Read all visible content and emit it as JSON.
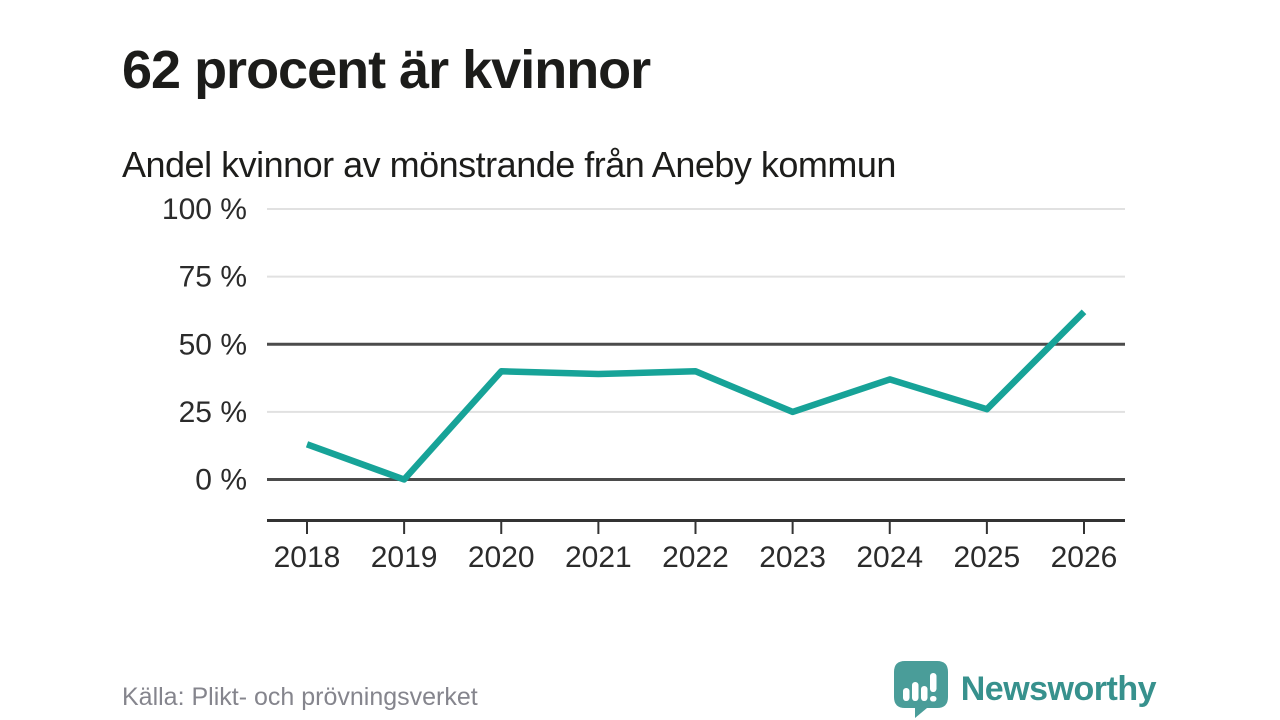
{
  "header": {
    "title": "62 procent är kvinnor",
    "subtitle": "Andel kvinnor av mönstrande från Aneby kommun"
  },
  "chart_data": {
    "type": "line",
    "title": "62 procent är kvinnor",
    "subtitle": "Andel kvinnor av mönstrande från Aneby kommun",
    "x": [
      "2018",
      "2019",
      "2020",
      "2021",
      "2022",
      "2023",
      "2024",
      "2025",
      "2026"
    ],
    "series": [
      {
        "name": "Andel kvinnor av mönstrande",
        "values": [
          13,
          0,
          40,
          39,
          40,
          25,
          37,
          26,
          62
        ]
      }
    ],
    "unit": "%",
    "ylim": [
      0,
      100
    ],
    "yticks": [
      {
        "value": 0,
        "label": "0 %",
        "emphasized": true
      },
      {
        "value": 25,
        "label": "25 %",
        "emphasized": false
      },
      {
        "value": 50,
        "label": "50 %",
        "emphasized": true
      },
      {
        "value": 75,
        "label": "75 %",
        "emphasized": false
      },
      {
        "value": 100,
        "label": "100 %",
        "emphasized": false
      }
    ],
    "grid": "horizontal",
    "legend": "none"
  },
  "footer": {
    "source": "Källa: Plikt- och prövningsverket",
    "brand": "Newsworthy"
  },
  "colors": {
    "accent_line": "#17a398",
    "grid_light": "#e1e1e1",
    "grid_dark": "#4b4b4b",
    "axis": "#333333",
    "tick_text": "#2b2b2b",
    "title_text": "#1c1c1a",
    "muted_text": "#85858d",
    "brand_text": "#37918d",
    "brand_icon": "#4a9d99"
  }
}
